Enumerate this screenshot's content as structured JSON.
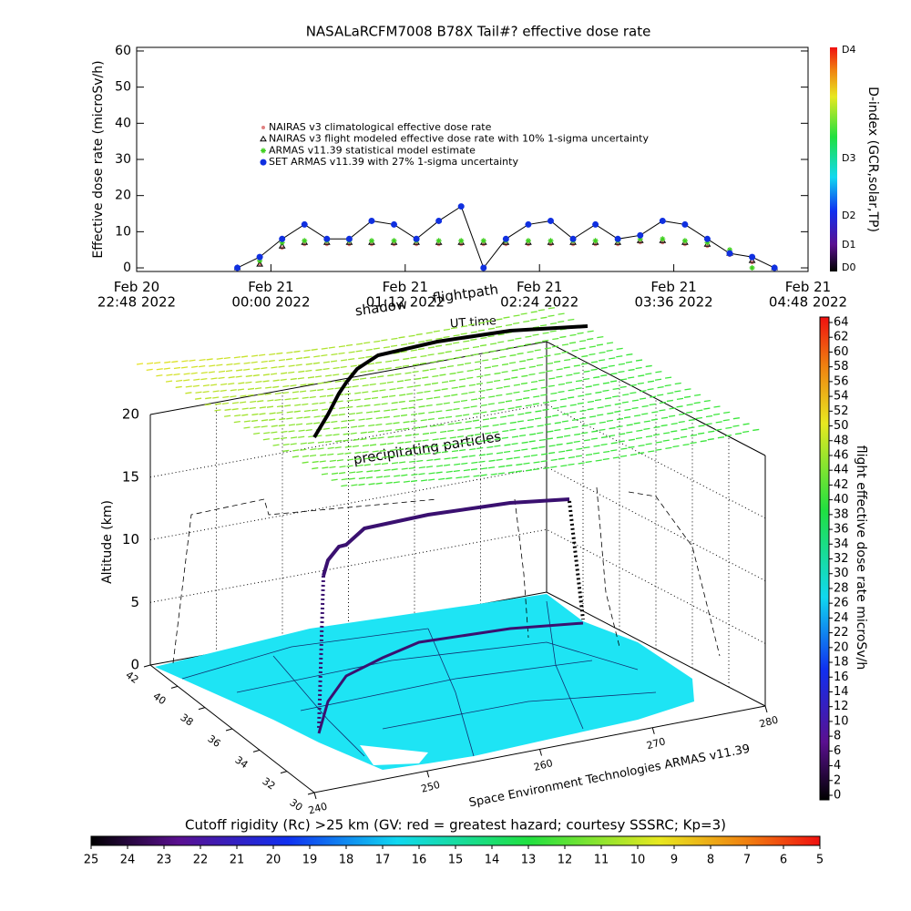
{
  "chart_data": [
    {
      "type": "line",
      "title": "NASALaRCFM7008  B78X Tail#? effective dose rate",
      "y_label": "Effective dose rate (microSv/h)",
      "xlim": [
        -1.2,
        4.8
      ],
      "xticks": [
        {
          "value": -1.2,
          "label": "Feb 20\n22:48 2022"
        },
        {
          "value": 0,
          "label": "Feb 21\n00:00 2022"
        },
        {
          "value": 1.2,
          "label": "Feb 21\n01:12 2022"
        },
        {
          "value": 2.4,
          "label": "Feb 21\n02:24 2022"
        },
        {
          "value": 3.6,
          "label": "Feb 21\n03:36 2022"
        },
        {
          "value": 4.8,
          "label": "Feb 21\n04:48 2022"
        }
      ],
      "ylim": [
        -1,
        61
      ],
      "yticks": [
        0,
        10,
        20,
        30,
        40,
        50,
        60
      ],
      "x": [
        -0.3,
        -0.1,
        0.1,
        0.3,
        0.5,
        0.7,
        0.9,
        1.1,
        1.3,
        1.5,
        1.7,
        1.9,
        2.1,
        2.3,
        2.5,
        2.7,
        2.9,
        3.1,
        3.3,
        3.5,
        3.7,
        3.9,
        4.1,
        4.3,
        4.5
      ],
      "series": [
        {
          "name": "NAIRAS v3 climatological effective dose rate",
          "color": "#e08080",
          "values": [
            0,
            1,
            5.5,
            6.5,
            6.5,
            6.5,
            6.5,
            6.5,
            6.5,
            6.5,
            6.5,
            6.5,
            6.5,
            6.5,
            6.5,
            6.5,
            6.5,
            6.5,
            7,
            7,
            6.5,
            6,
            3.5,
            1.5,
            0
          ]
        },
        {
          "name": "NAIRAS v3 flight modeled effective dose rate with 10% 1-sigma uncertainty",
          "color": "#000000",
          "values": [
            0,
            1,
            6,
            7,
            7,
            7,
            7,
            7,
            7,
            7,
            7,
            7,
            7,
            7,
            7,
            7,
            7,
            7,
            7.5,
            7.5,
            7,
            6.5,
            4,
            2,
            0
          ]
        },
        {
          "name": "ARMAS v11.39 statistical model estimate",
          "color": "#40d020",
          "values": [
            0,
            2,
            7,
            7.5,
            7.5,
            7.5,
            7.5,
            7.5,
            7.5,
            7.5,
            7.5,
            7.5,
            7.5,
            7.5,
            7.5,
            7.5,
            7.5,
            7.5,
            8,
            8,
            7.5,
            7,
            5,
            0,
            0
          ]
        },
        {
          "name": "SET ARMAS v11.39 with 27% 1-sigma uncertainty",
          "color": "#1030e0",
          "values": [
            0,
            3,
            8,
            12,
            8,
            8,
            13,
            12,
            8,
            13,
            17,
            0,
            8,
            12,
            13,
            8,
            12,
            8,
            9,
            13,
            12,
            8,
            4,
            3,
            0
          ]
        }
      ]
    },
    {
      "type": "surface3d",
      "z_label": "Altitude (km)",
      "zlim": [
        0,
        20
      ],
      "zticks": [
        0,
        5,
        10,
        15,
        20
      ],
      "ylim": [
        42,
        30
      ],
      "yticks": [
        42,
        40,
        38,
        36,
        34,
        32,
        30
      ],
      "xlim": [
        240,
        280
      ],
      "xticks": [
        240,
        250,
        260,
        270,
        280
      ],
      "annotations": {
        "shadow": "shadow",
        "flightpath": "flightpath",
        "ut_time": "UT time",
        "particles": "precipitating particles",
        "credit": "Space Environment Technologies ARMAS v11.39"
      },
      "colorbar": {
        "label": "flight effective dose rate microSv/h",
        "lim": [
          0,
          64
        ],
        "ticks": [
          0,
          2,
          4,
          6,
          8,
          10,
          12,
          14,
          16,
          18,
          20,
          22,
          24,
          26,
          28,
          30,
          32,
          34,
          36,
          38,
          40,
          42,
          44,
          46,
          48,
          50,
          52,
          54,
          56,
          58,
          60,
          62,
          64
        ]
      }
    }
  ],
  "d_index_colorbar": {
    "label": "D-index (GCR,solar,TP)",
    "ticks": [
      "D0",
      "D1",
      "D2",
      "D3",
      "D4"
    ]
  },
  "cutoff_colorbar": {
    "title": "Cutoff rigidity (Rc) >25 km (GV: red = greatest hazard; courtesy SSSRC; Kp=3)",
    "lim": [
      25,
      5
    ],
    "ticks": [
      25,
      24,
      23,
      22,
      21,
      20,
      19,
      18,
      17,
      16,
      15,
      14,
      13,
      12,
      11,
      10,
      9,
      8,
      7,
      6,
      5
    ]
  }
}
